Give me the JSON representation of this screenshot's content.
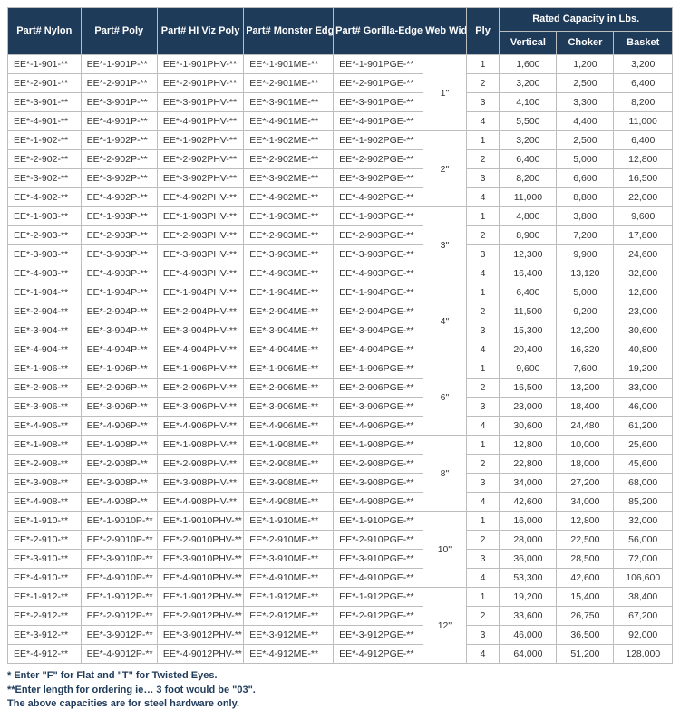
{
  "headers": {
    "nylon": "Part# Nylon",
    "poly": "Part# Poly",
    "hiviz": "Part# HI Viz Poly",
    "monster": "Part# Monster Edge®",
    "gorilla": "Part# Gorilla-Edge™ (PGE)",
    "web": "Web Width (in.)",
    "ply": "Ply",
    "rated": "Rated Capacity in Lbs.",
    "vertical": "Vertical",
    "choker": "Choker",
    "basket": "Basket"
  },
  "groups": [
    {
      "web": "1\"",
      "rows": [
        {
          "nylon": "EE*-1-901-**",
          "poly": "EE*-1-901P-**",
          "hiviz": "EE*-1-901PHV-**",
          "me": "EE*-1-901ME-**",
          "pge": "EE*-1-901PGE-**",
          "ply": "1",
          "v": "1,600",
          "c": "1,200",
          "b": "3,200"
        },
        {
          "nylon": "EE*-2-901-**",
          "poly": "EE*-2-901P-**",
          "hiviz": "EE*-2-901PHV-**",
          "me": "EE*-2-901ME-**",
          "pge": "EE*-2-901PGE-**",
          "ply": "2",
          "v": "3,200",
          "c": "2,500",
          "b": "6,400"
        },
        {
          "nylon": "EE*-3-901-**",
          "poly": "EE*-3-901P-**",
          "hiviz": "EE*-3-901PHV-**",
          "me": "EE*-3-901ME-**",
          "pge": "EE*-3-901PGE-**",
          "ply": "3",
          "v": "4,100",
          "c": "3,300",
          "b": "8,200"
        },
        {
          "nylon": "EE*-4-901-**",
          "poly": "EE*-4-901P-**",
          "hiviz": "EE*-4-901PHV-**",
          "me": "EE*-4-901ME-**",
          "pge": "EE*-4-901PGE-**",
          "ply": "4",
          "v": "5,500",
          "c": "4,400",
          "b": "11,000"
        }
      ]
    },
    {
      "web": "2\"",
      "rows": [
        {
          "nylon": "EE*-1-902-**",
          "poly": "EE*-1-902P-**",
          "hiviz": "EE*-1-902PHV-**",
          "me": "EE*-1-902ME-**",
          "pge": "EE*-1-902PGE-**",
          "ply": "1",
          "v": "3,200",
          "c": "2,500",
          "b": "6,400"
        },
        {
          "nylon": "EE*-2-902-**",
          "poly": "EE*-2-902P-**",
          "hiviz": "EE*-2-902PHV-**",
          "me": "EE*-2-902ME-**",
          "pge": "EE*-2-902PGE-**",
          "ply": "2",
          "v": "6,400",
          "c": "5,000",
          "b": "12,800"
        },
        {
          "nylon": "EE*-3-902-**",
          "poly": "EE*-3-902P-**",
          "hiviz": "EE*-3-902PHV-**",
          "me": "EE*-3-902ME-**",
          "pge": "EE*-3-902PGE-**",
          "ply": "3",
          "v": "8,200",
          "c": "6,600",
          "b": "16,500"
        },
        {
          "nylon": "EE*-4-902-**",
          "poly": "EE*-4-902P-**",
          "hiviz": "EE*-4-902PHV-**",
          "me": "EE*-4-902ME-**",
          "pge": "EE*-4-902PGE-**",
          "ply": "4",
          "v": "11,000",
          "c": "8,800",
          "b": "22,000"
        }
      ]
    },
    {
      "web": "3\"",
      "rows": [
        {
          "nylon": "EE*-1-903-**",
          "poly": "EE*-1-903P-**",
          "hiviz": "EE*-1-903PHV-**",
          "me": "EE*-1-903ME-**",
          "pge": "EE*-1-903PGE-**",
          "ply": "1",
          "v": "4,800",
          "c": "3,800",
          "b": "9,600"
        },
        {
          "nylon": "EE*-2-903-**",
          "poly": "EE*-2-903P-**",
          "hiviz": "EE*-2-903PHV-**",
          "me": "EE*-2-903ME-**",
          "pge": "EE*-2-903PGE-**",
          "ply": "2",
          "v": "8,900",
          "c": "7,200",
          "b": "17,800"
        },
        {
          "nylon": "EE*-3-903-**",
          "poly": "EE*-3-903P-**",
          "hiviz": "EE*-3-903PHV-**",
          "me": "EE*-3-903ME-**",
          "pge": "EE*-3-903PGE-**",
          "ply": "3",
          "v": "12,300",
          "c": "9,900",
          "b": "24,600"
        },
        {
          "nylon": "EE*-4-903-**",
          "poly": "EE*-4-903P-**",
          "hiviz": "EE*-4-903PHV-**",
          "me": "EE*-4-903ME-**",
          "pge": "EE*-4-903PGE-**",
          "ply": "4",
          "v": "16,400",
          "c": "13,120",
          "b": "32,800"
        }
      ]
    },
    {
      "web": "4\"",
      "rows": [
        {
          "nylon": "EE*-1-904-**",
          "poly": "EE*-1-904P-**",
          "hiviz": "EE*-1-904PHV-**",
          "me": "EE*-1-904ME-**",
          "pge": "EE*-1-904PGE-**",
          "ply": "1",
          "v": "6,400",
          "c": "5,000",
          "b": "12,800"
        },
        {
          "nylon": "EE*-2-904-**",
          "poly": "EE*-2-904P-**",
          "hiviz": "EE*-2-904PHV-**",
          "me": "EE*-2-904ME-**",
          "pge": "EE*-2-904PGE-**",
          "ply": "2",
          "v": "11,500",
          "c": "9,200",
          "b": "23,000"
        },
        {
          "nylon": "EE*-3-904-**",
          "poly": "EE*-3-904P-**",
          "hiviz": "EE*-3-904PHV-**",
          "me": "EE*-3-904ME-**",
          "pge": "EE*-3-904PGE-**",
          "ply": "3",
          "v": "15,300",
          "c": "12,200",
          "b": "30,600"
        },
        {
          "nylon": "EE*-4-904-**",
          "poly": "EE*-4-904P-**",
          "hiviz": "EE*-4-904PHV-**",
          "me": "EE*-4-904ME-**",
          "pge": "EE*-4-904PGE-**",
          "ply": "4",
          "v": "20,400",
          "c": "16,320",
          "b": "40,800"
        }
      ]
    },
    {
      "web": "6\"",
      "rows": [
        {
          "nylon": "EE*-1-906-**",
          "poly": "EE*-1-906P-**",
          "hiviz": "EE*-1-906PHV-**",
          "me": "EE*-1-906ME-**",
          "pge": "EE*-1-906PGE-**",
          "ply": "1",
          "v": "9,600",
          "c": "7,600",
          "b": "19,200"
        },
        {
          "nylon": "EE*-2-906-**",
          "poly": "EE*-2-906P-**",
          "hiviz": "EE*-2-906PHV-**",
          "me": "EE*-2-906ME-**",
          "pge": "EE*-2-906PGE-**",
          "ply": "2",
          "v": "16,500",
          "c": "13,200",
          "b": "33,000"
        },
        {
          "nylon": "EE*-3-906-**",
          "poly": "EE*-3-906P-**",
          "hiviz": "EE*-3-906PHV-**",
          "me": "EE*-3-906ME-**",
          "pge": "EE*-3-906PGE-**",
          "ply": "3",
          "v": "23,000",
          "c": "18,400",
          "b": "46,000"
        },
        {
          "nylon": "EE*-4-906-**",
          "poly": "EE*-4-906P-**",
          "hiviz": "EE*-4-906PHV-**",
          "me": "EE*-4-906ME-**",
          "pge": "EE*-4-906PGE-**",
          "ply": "4",
          "v": "30,600",
          "c": "24,480",
          "b": "61,200"
        }
      ]
    },
    {
      "web": "8\"",
      "rows": [
        {
          "nylon": "EE*-1-908-**",
          "poly": "EE*-1-908P-**",
          "hiviz": "EE*-1-908PHV-**",
          "me": "EE*-1-908ME-**",
          "pge": "EE*-1-908PGE-**",
          "ply": "1",
          "v": "12,800",
          "c": "10,000",
          "b": "25,600"
        },
        {
          "nylon": "EE*-2-908-**",
          "poly": "EE*-2-908P-**",
          "hiviz": "EE*-2-908PHV-**",
          "me": "EE*-2-908ME-**",
          "pge": "EE*-2-908PGE-**",
          "ply": "2",
          "v": "22,800",
          "c": "18,000",
          "b": "45,600"
        },
        {
          "nylon": "EE*-3-908-**",
          "poly": "EE*-3-908P-**",
          "hiviz": "EE*-3-908PHV-**",
          "me": "EE*-3-908ME-**",
          "pge": "EE*-3-908PGE-**",
          "ply": "3",
          "v": "34,000",
          "c": "27,200",
          "b": "68,000"
        },
        {
          "nylon": "EE*-4-908-**",
          "poly": "EE*-4-908P-**",
          "hiviz": "EE*-4-908PHV-**",
          "me": "EE*-4-908ME-**",
          "pge": "EE*-4-908PGE-**",
          "ply": "4",
          "v": "42,600",
          "c": "34,000",
          "b": "85,200"
        }
      ]
    },
    {
      "web": "10\"",
      "rows": [
        {
          "nylon": "EE*-1-910-**",
          "poly": "EE*-1-9010P-**",
          "hiviz": "EE*-1-9010PHV-**",
          "me": "EE*-1-910ME-**",
          "pge": "EE*-1-910PGE-**",
          "ply": "1",
          "v": "16,000",
          "c": "12,800",
          "b": "32,000"
        },
        {
          "nylon": "EE*-2-910-**",
          "poly": "EE*-2-9010P-**",
          "hiviz": "EE*-2-9010PHV-**",
          "me": "EE*-2-910ME-**",
          "pge": "EE*-2-910PGE-**",
          "ply": "2",
          "v": "28,000",
          "c": "22,500",
          "b": "56,000"
        },
        {
          "nylon": "EE*-3-910-**",
          "poly": "EE*-3-9010P-**",
          "hiviz": "EE*-3-9010PHV-**",
          "me": "EE*-3-910ME-**",
          "pge": "EE*-3-910PGE-**",
          "ply": "3",
          "v": "36,000",
          "c": "28,500",
          "b": "72,000"
        },
        {
          "nylon": "EE*-4-910-**",
          "poly": "EE*-4-9010P-**",
          "hiviz": "EE*-4-9010PHV-**",
          "me": "EE*-4-910ME-**",
          "pge": "EE*-4-910PGE-**",
          "ply": "4",
          "v": "53,300",
          "c": "42,600",
          "b": "106,600"
        }
      ]
    },
    {
      "web": "12\"",
      "rows": [
        {
          "nylon": "EE*-1-912-**",
          "poly": "EE*-1-9012P-**",
          "hiviz": "EE*-1-9012PHV-**",
          "me": "EE*-1-912ME-**",
          "pge": "EE*-1-912PGE-**",
          "ply": "1",
          "v": "19,200",
          "c": "15,400",
          "b": "38,400"
        },
        {
          "nylon": "EE*-2-912-**",
          "poly": "EE*-2-9012P-**",
          "hiviz": "EE*-2-9012PHV-**",
          "me": "EE*-2-912ME-**",
          "pge": "EE*-2-912PGE-**",
          "ply": "2",
          "v": "33,600",
          "c": "26,750",
          "b": "67,200"
        },
        {
          "nylon": "EE*-3-912-**",
          "poly": "EE*-3-9012P-**",
          "hiviz": "EE*-3-9012PHV-**",
          "me": "EE*-3-912ME-**",
          "pge": "EE*-3-912PGE-**",
          "ply": "3",
          "v": "46,000",
          "c": "36,500",
          "b": "92,000"
        },
        {
          "nylon": "EE*-4-912-**",
          "poly": "EE*-4-9012P-**",
          "hiviz": "EE*-4-9012PHV-**",
          "me": "EE*-4-912ME-**",
          "pge": "EE*-4-912PGE-**",
          "ply": "4",
          "v": "64,000",
          "c": "51,200",
          "b": "128,000"
        }
      ]
    }
  ],
  "footnotes": {
    "f1": "* Enter \"F\" for Flat and \"T\" for Twisted Eyes.",
    "f2": "**Enter length for ordering ie… 3 foot would be \"03\".",
    "f3": "The above capacities are for steel hardware only."
  }
}
